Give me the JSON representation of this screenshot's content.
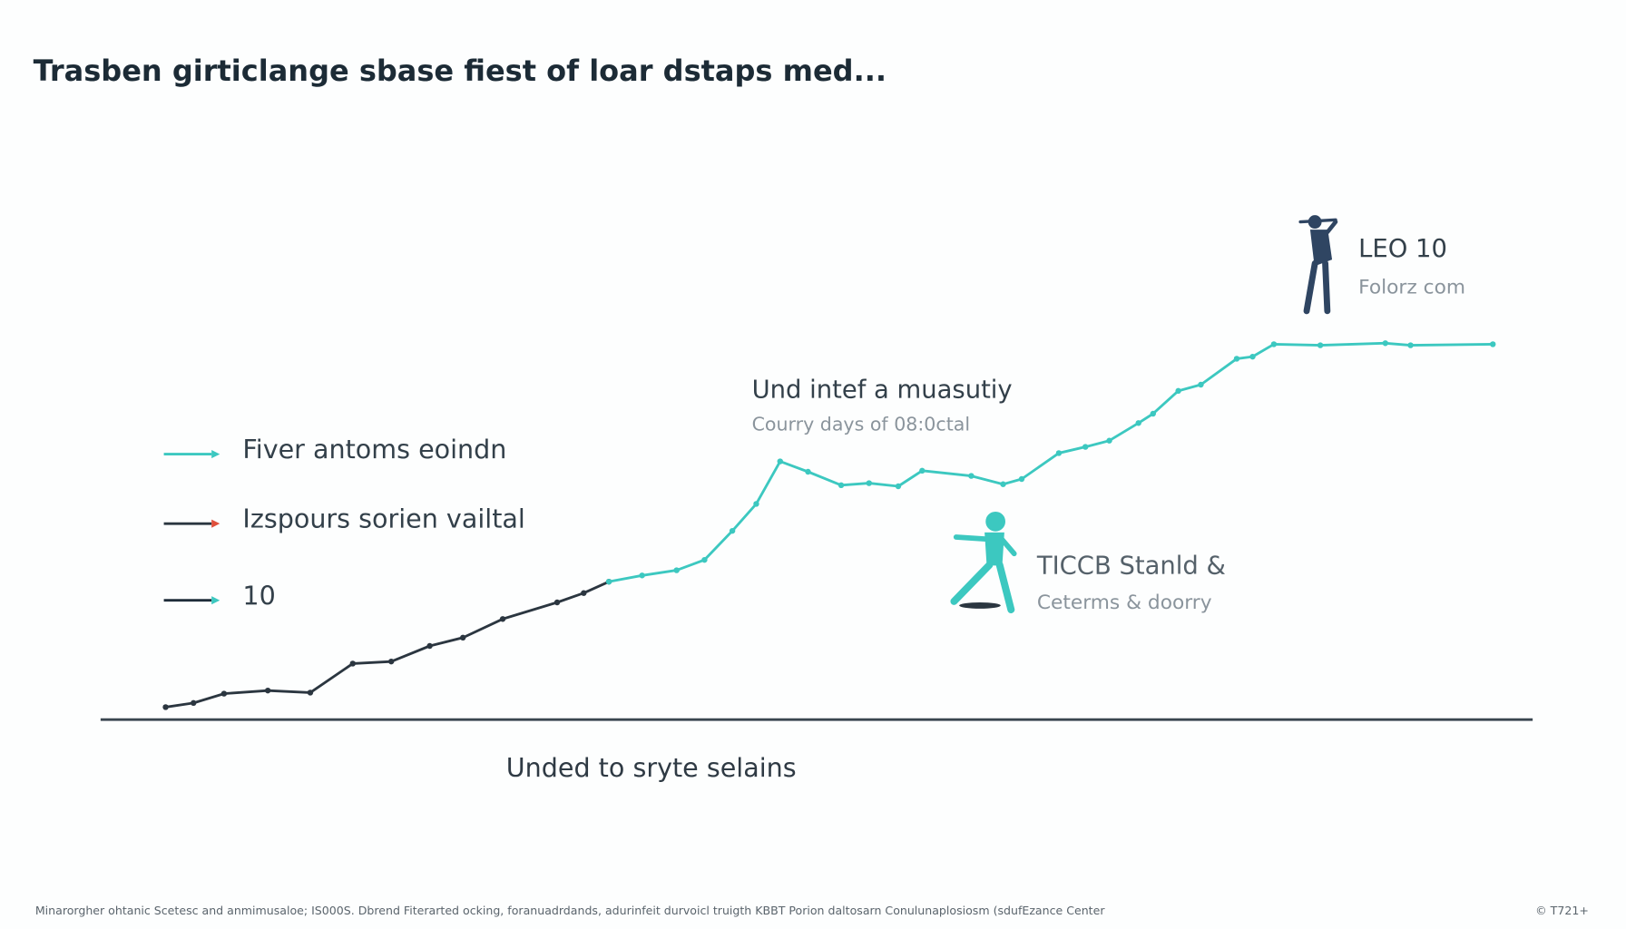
{
  "chart_data": {
    "type": "line",
    "title": "Trasben girticlange sbase fiest of loar dstaps med...",
    "x_label": "Unded to sryte selains",
    "x": [
      0,
      2.1,
      4.4,
      7.7,
      10.9,
      14.1,
      17,
      19.9,
      22.4,
      25.4,
      29.5,
      31.5,
      33.4,
      35.9,
      38.5,
      40.6,
      42.7,
      44.5,
      46.3,
      48.4,
      50.9,
      53,
      55.2,
      57,
      60.7,
      63.1,
      64.5,
      67.3,
      69.3,
      71.1,
      73.3,
      74.4,
      76.3,
      78,
      80.7,
      81.9,
      83.5,
      87,
      91.9,
      93.8,
      100
    ],
    "xlim": [
      -4.9,
      103
    ],
    "ylim": [
      0,
      100
    ],
    "series": [
      {
        "name": "Izspours sorien vailtal",
        "color": "#2b3640",
        "values": [
          2.4,
          3.2,
          5,
          5.6,
          5.2,
          10.8,
          11.2,
          14.2,
          15.8,
          19.4,
          22.6,
          24.4,
          26.6,
          null,
          null,
          null,
          null,
          null,
          null,
          null,
          null,
          null,
          null,
          null,
          null,
          null,
          null,
          null,
          null,
          null,
          null,
          null,
          null,
          null,
          null,
          null,
          null,
          null,
          null,
          null,
          null
        ]
      },
      {
        "name": "Fiver antoms eoindn",
        "color": "#3cc8c0",
        "values": [
          null,
          null,
          null,
          null,
          null,
          null,
          null,
          null,
          null,
          null,
          null,
          null,
          26.6,
          27.8,
          28.8,
          30.8,
          36.4,
          41.6,
          49.8,
          47.8,
          45.2,
          45.6,
          45,
          48,
          47,
          45.4,
          46.4,
          51.4,
          52.6,
          53.8,
          57.2,
          59,
          63.4,
          64.6,
          69.6,
          70,
          72.4,
          72.2,
          72.6,
          72.2,
          72.4
        ]
      }
    ],
    "legend": [
      {
        "name": "Fiver antoms eoindn",
        "color": "#3cc8c0",
        "arrow": "#3cc8c0"
      },
      {
        "name": "Izspours sorien vailtal",
        "color": "#2b3640",
        "arrow": "#e0503c"
      },
      {
        "name": "10",
        "color": "#1f2d3a",
        "arrow": "#3cc8c0"
      }
    ],
    "annotations": [
      {
        "title": "Und intef a muasutiy",
        "subtitle": "Courry days of 08:0ctal"
      },
      {
        "title": "LEO 10",
        "subtitle": "Folorz com"
      },
      {
        "title": "TICCB Stanld &",
        "subtitle": "Ceterms & doorry"
      }
    ],
    "footer": "Minarorgher ohtanic Scetesc and anmimusaloe; IS000S. Dbrend Fiterarted ocking, foranuadrdands, adurinfeit durvoicl truigth KBBT Porion daltosarn Conulunaplosiosm (sdufEzance Center",
    "footer_right": "© T721+"
  }
}
